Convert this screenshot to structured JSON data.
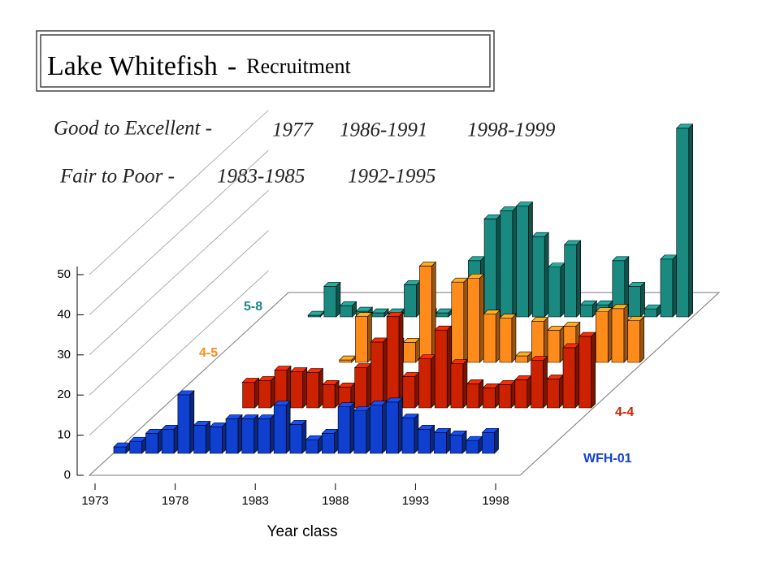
{
  "chart_data": {
    "type": "bar3d",
    "title": [
      "Lake Whitefish",
      "-",
      "Recruitment"
    ],
    "annotations": [
      [
        "Good to Excellent -",
        "1977",
        "1986-1991",
        "1998-1999"
      ],
      [
        "Fair to Poor -",
        "1983-1985",
        "1992-1995"
      ]
    ],
    "x_label": "Year class",
    "x": [
      1973,
      1974,
      1975,
      1976,
      1977,
      1978,
      1979,
      1980,
      1981,
      1982,
      1983,
      1984,
      1985,
      1986,
      1987,
      1988,
      1989,
      1990,
      1991,
      1992,
      1993,
      1994,
      1995,
      1996,
      1997,
      1998,
      1999
    ],
    "xlim": [
      1973,
      1998
    ],
    "xticks": [
      1973,
      1978,
      1983,
      1988,
      1993,
      1998
    ],
    "ylim": [
      0,
      50
    ],
    "yticks": [
      0,
      10,
      20,
      30,
      40,
      50
    ],
    "grid": true,
    "series": [
      {
        "name": "WFH-01",
        "color": "#1040d0",
        "values": [
          1.6,
          3,
          5,
          6,
          14.6,
          7,
          6.6,
          8.6,
          8.6,
          8.6,
          12,
          7.2,
          3.4,
          5,
          11.6,
          10.6,
          12,
          12.8,
          8.8,
          6,
          5.2,
          4.6,
          3.2,
          5.2,
          null,
          null,
          null
        ]
      },
      {
        "name": "4-4",
        "color": "#cc2200",
        "values": [
          null,
          null,
          null,
          null,
          null,
          6.4,
          6.8,
          9.4,
          9,
          8.8,
          5.8,
          5.2,
          10,
          16.4,
          22.8,
          7.8,
          12.2,
          19.4,
          11,
          6,
          5,
          5.8,
          7,
          11.8,
          7.2,
          15,
          17.8
        ]
      },
      {
        "name": "4-5",
        "color": "#ff8c1a",
        "values": [
          null,
          null,
          null,
          null,
          null,
          null,
          null,
          null,
          0.6,
          11.4,
          0.6,
          5,
          5,
          24,
          0.6,
          20,
          21,
          12,
          11,
          1.6,
          10.2,
          8,
          9,
          4,
          12.6,
          13.4,
          10.4
        ]
      },
      {
        "name": "5-8",
        "color": "#1a8a80",
        "values": [
          null,
          null,
          null,
          0.4,
          7.6,
          2.8,
          1.4,
          1,
          1,
          8,
          1,
          1,
          3,
          14,
          24.4,
          26.4,
          27.6,
          20,
          12.4,
          18,
          3,
          3,
          14,
          7.6,
          2,
          14.4,
          47
        ]
      }
    ]
  }
}
